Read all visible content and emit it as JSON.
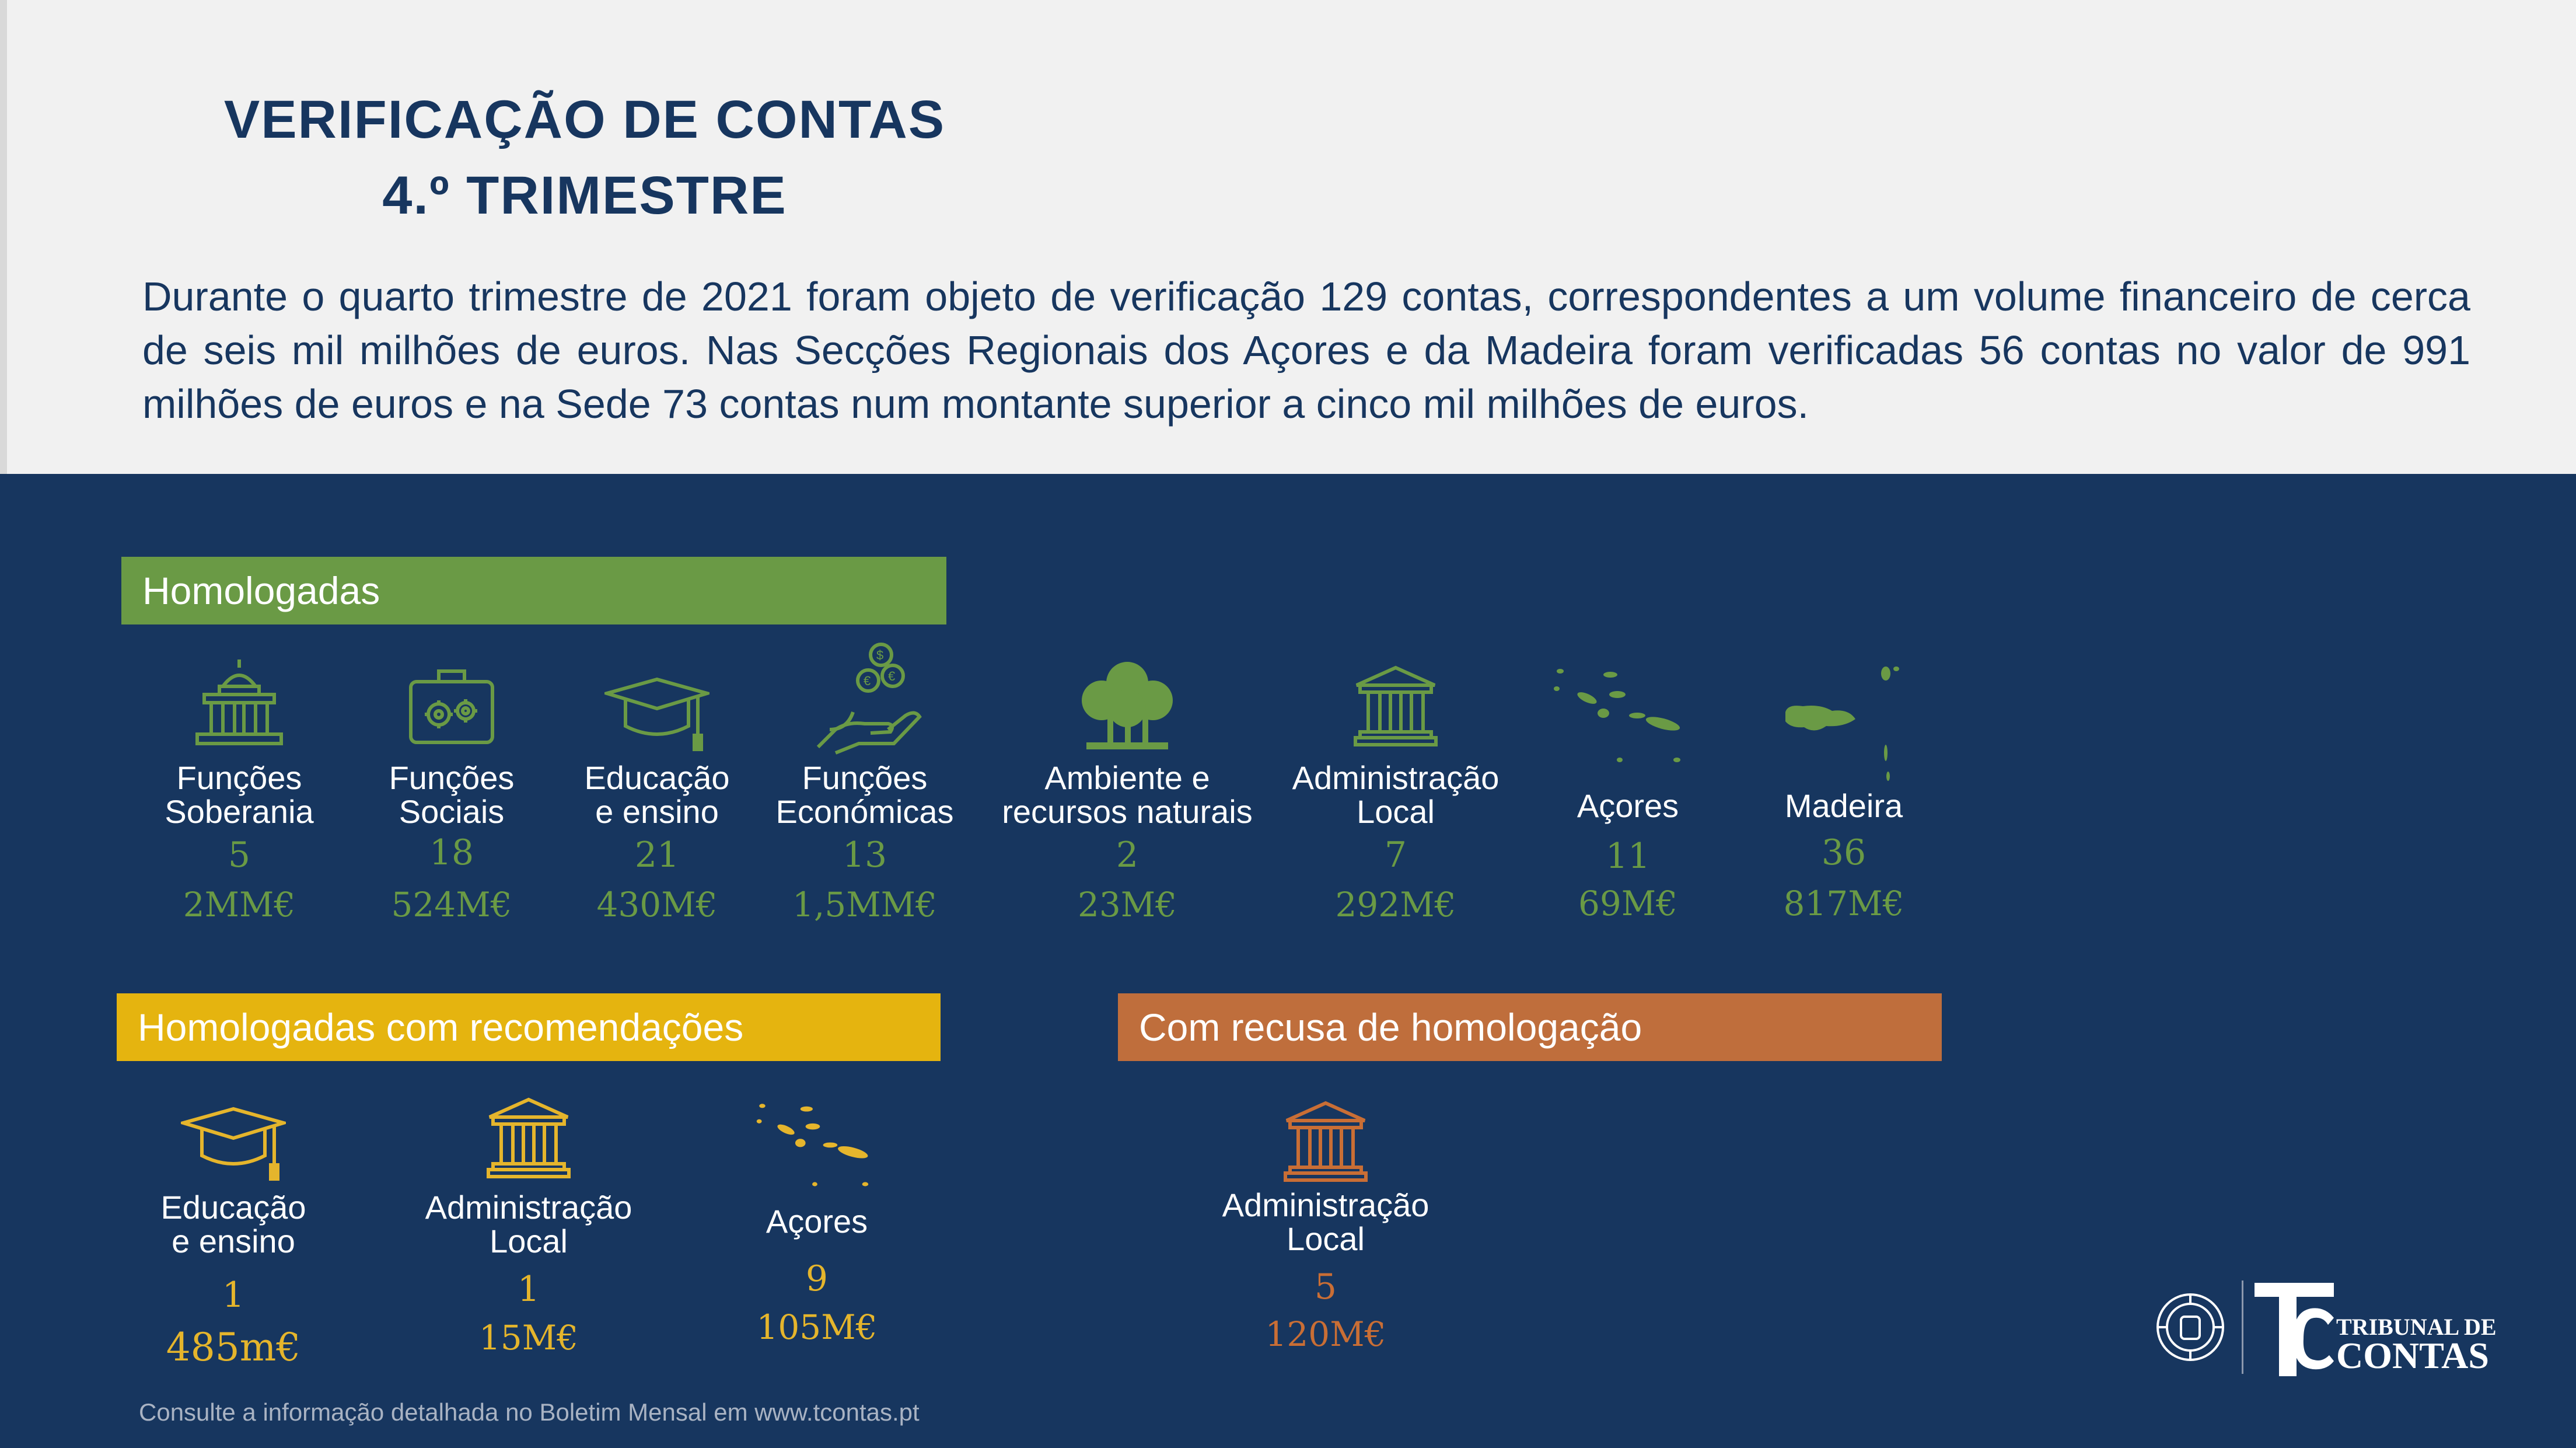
{
  "title": {
    "line1": "VERIFICAÇÃO DE CONTAS",
    "line2": "4.º TRIMESTRE"
  },
  "intro": "Durante o quarto trimestre de 2021 foram objeto de verificação 129 contas, correspondentes a um volume financeiro de cerca de seis mil milhões de euros. Nas Secções Regionais dos Açores e da Madeira foram verificadas 56 contas no valor de 991 milhões de euros e na Sede 73 contas num montante superior a cinco mil milhões de euros.",
  "colors": {
    "green": "#6a9a45",
    "yellow": "#e5b52c",
    "orange": "#c96e35",
    "navy": "#17365f"
  },
  "homologadas": {
    "header": "Homologadas",
    "items": [
      {
        "icon": "government-building-icon",
        "label1": "Funções",
        "label2": "Soberania",
        "count": "5",
        "value": "2MM€"
      },
      {
        "icon": "toolbox-gears-icon",
        "label1": "Funções",
        "label2": "Sociais",
        "count": "18",
        "value": "524M€"
      },
      {
        "icon": "graduation-cap-icon",
        "label1": "Educação",
        "label2": "e ensino",
        "count": "21",
        "value": "430M€"
      },
      {
        "icon": "hand-coins-icon",
        "label1": "Funções",
        "label2": "Económicas",
        "count": "13",
        "value": "1,5MM€"
      },
      {
        "icon": "trees-icon",
        "label1": "Ambiente e",
        "label2": "recursos naturais",
        "count": "2",
        "value": "23M€"
      },
      {
        "icon": "town-hall-icon",
        "label1": "Administração",
        "label2": "Local",
        "count": "7",
        "value": "292M€"
      },
      {
        "icon": "azores-map-icon",
        "label1": "Açores",
        "label2": "",
        "count": "11",
        "value": "69M€"
      },
      {
        "icon": "madeira-map-icon",
        "label1": "Madeira",
        "label2": "",
        "count": "36",
        "value": "817M€"
      }
    ]
  },
  "recomendacoes": {
    "header": "Homologadas com recomendações",
    "items": [
      {
        "icon": "graduation-cap-icon",
        "label1": "Educação",
        "label2": "e ensino",
        "count": "1",
        "value": "485m€"
      },
      {
        "icon": "town-hall-icon",
        "label1": "Administração",
        "label2": "Local",
        "count": "1",
        "value": "15M€"
      },
      {
        "icon": "azores-map-icon",
        "label1": "Açores",
        "label2": "",
        "count": "9",
        "value": "105M€"
      }
    ]
  },
  "recusa": {
    "header": "Com recusa de homologação",
    "items": [
      {
        "icon": "town-hall-icon",
        "label1": "Administração",
        "label2": "Local",
        "count": "5",
        "value": "120M€"
      }
    ]
  },
  "footer": "Consulte a informação detalhada no Boletim Mensal em www.tcontas.pt",
  "logo": {
    "line1": "TRIBUNAL DE",
    "line2": "CONTAS"
  }
}
